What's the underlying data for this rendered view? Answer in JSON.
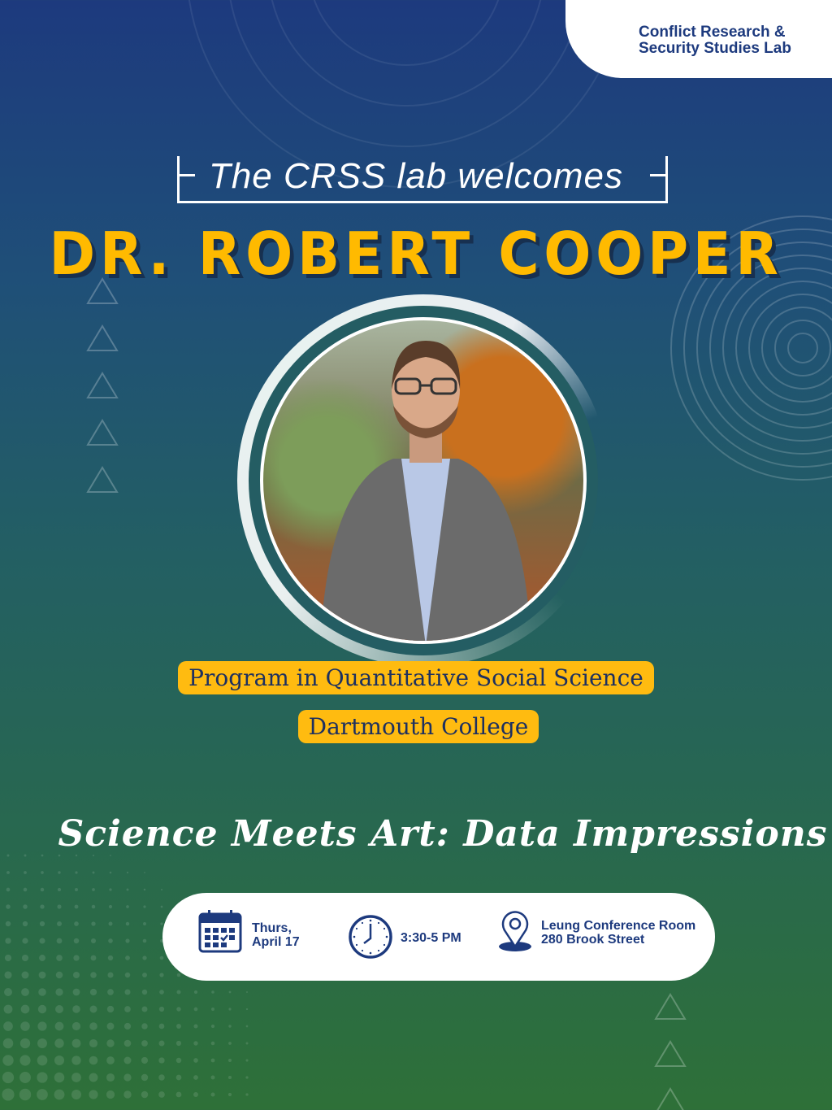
{
  "header": {
    "lab_name_line1": "Conflict Research &",
    "lab_name_line2": "Security Studies Lab"
  },
  "intro": "The CRSS lab welcomes",
  "speaker": {
    "name": "DR. ROBERT COOPER",
    "affiliation_program": "Program in Quantitative Social Science",
    "affiliation_institution": "Dartmouth College"
  },
  "talk_title": "Science Meets Art: Data Impressions",
  "details": {
    "date": {
      "icon": "calendar-icon",
      "line1": "Thurs,",
      "line2": "April 17"
    },
    "time": {
      "icon": "clock-icon",
      "text": "3:30-5 PM"
    },
    "location": {
      "icon": "location-pin-icon",
      "line1": "Leung Conference Room",
      "line2": "280 Brook Street"
    }
  },
  "colors": {
    "accent": "#ffba00",
    "navy": "#1d3a7e",
    "green": "#2e7038"
  }
}
